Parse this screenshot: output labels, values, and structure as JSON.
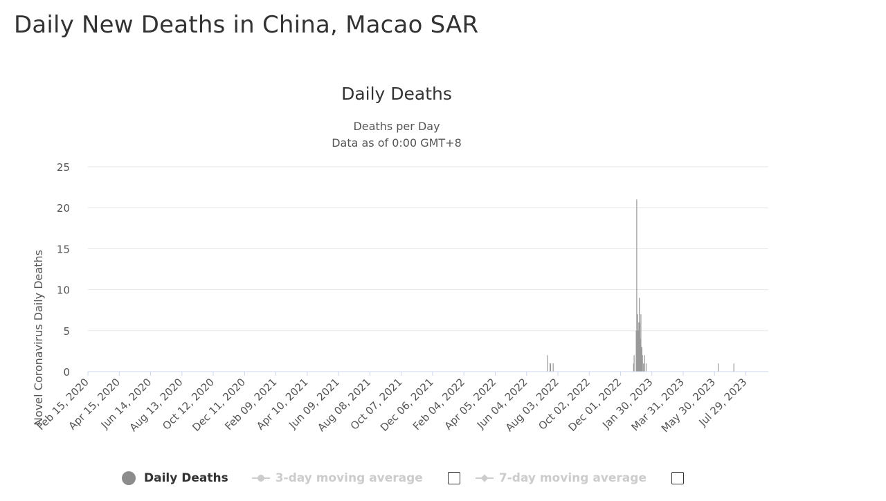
{
  "page_title": "Daily New Deaths in China, Macao SAR",
  "chart_data": {
    "type": "bar",
    "title": "Daily Deaths",
    "subtitle_line1": "Deaths per Day",
    "subtitle_line2": "Data as of 0:00 GMT+8",
    "xlabel": "",
    "ylabel": "Novel Coronavirus Daily Deaths",
    "ylim": [
      0,
      25
    ],
    "y_ticks": [
      "0",
      "5",
      "10",
      "15",
      "20",
      "25"
    ],
    "x_range": [
      "2020-02-15",
      "2023-09-10"
    ],
    "x_tick_labels": [
      "Feb 15, 2020",
      "Apr 15, 2020",
      "Jun 14, 2020",
      "Aug 13, 2020",
      "Oct 12, 2020",
      "Dec 11, 2020",
      "Feb 09, 2021",
      "Apr 10, 2021",
      "Jun 09, 2021",
      "Aug 08, 2021",
      "Oct 07, 2021",
      "Dec 06, 2021",
      "Feb 04, 2022",
      "Apr 05, 2022",
      "Jun 04, 2022",
      "Aug 03, 2022",
      "Oct 02, 2022",
      "Dec 01, 2022",
      "Jan 30, 2023",
      "Mar 31, 2023",
      "May 30, 2023",
      "Jul 29, 2023"
    ],
    "grid": true,
    "bar_color": "#999999",
    "series": [
      {
        "name": "Daily Deaths",
        "points": [
          {
            "x": "2022-07-14",
            "y": 2
          },
          {
            "x": "2022-07-19",
            "y": 1
          },
          {
            "x": "2022-07-20",
            "y": 1
          },
          {
            "x": "2022-07-25",
            "y": 1
          },
          {
            "x": "2022-12-26",
            "y": 1
          },
          {
            "x": "2022-12-27",
            "y": 2
          },
          {
            "x": "2022-12-31",
            "y": 5
          },
          {
            "x": "2023-01-01",
            "y": 21
          },
          {
            "x": "2023-01-02",
            "y": 5
          },
          {
            "x": "2023-01-03",
            "y": 7
          },
          {
            "x": "2023-01-04",
            "y": 5
          },
          {
            "x": "2023-01-05",
            "y": 6
          },
          {
            "x": "2023-01-06",
            "y": 9
          },
          {
            "x": "2023-01-07",
            "y": 6
          },
          {
            "x": "2023-01-08",
            "y": 4
          },
          {
            "x": "2023-01-09",
            "y": 7
          },
          {
            "x": "2023-01-10",
            "y": 3
          },
          {
            "x": "2023-01-11",
            "y": 3
          },
          {
            "x": "2023-01-12",
            "y": 2
          },
          {
            "x": "2023-01-14",
            "y": 1
          },
          {
            "x": "2023-01-16",
            "y": 2
          },
          {
            "x": "2023-01-19",
            "y": 1
          },
          {
            "x": "2023-06-06",
            "y": 1
          },
          {
            "x": "2023-07-06",
            "y": 1
          }
        ]
      }
    ],
    "legend": {
      "position": "bottom",
      "items": [
        {
          "label": "Daily Deaths",
          "active": true
        },
        {
          "label": "3-day moving average",
          "active": false
        },
        {
          "label": "7-day moving average",
          "active": false
        }
      ]
    }
  }
}
